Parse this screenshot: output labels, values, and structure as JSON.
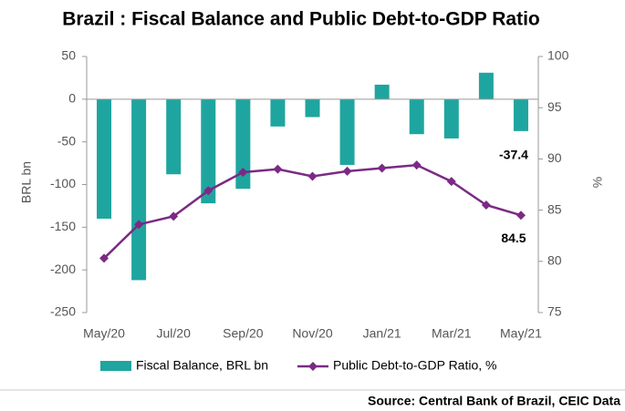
{
  "chart_data": {
    "type": "bar-line",
    "title": "Brazil : Fiscal Balance and Public Debt-to-GDP Ratio",
    "source": "Source: Central Bank of Brazil, CEIC Data",
    "y_label": "BRL bn",
    "y2_label": "%",
    "categories": [
      "May/20",
      null,
      "Jul/20",
      null,
      "Sep/20",
      null,
      "Nov/20",
      null,
      "Jan/21",
      null,
      "Mar/21",
      null,
      "May/21"
    ],
    "series": [
      {
        "name": "Fiscal Balance, BRL bn",
        "type": "bar",
        "color": "#1fa59f",
        "values": [
          -140,
          -212,
          -88,
          -122,
          -105,
          -32,
          -21,
          -77,
          17,
          -41,
          -46,
          31,
          -37.4
        ]
      },
      {
        "name": "Public Debt-to-GDP Ratio, %",
        "type": "line",
        "axis": "y2",
        "color": "#7b2a84",
        "values": [
          80.3,
          83.6,
          84.4,
          86.9,
          88.7,
          89.0,
          88.3,
          88.8,
          89.1,
          89.4,
          87.8,
          85.5,
          84.5
        ]
      }
    ],
    "ylim": [
      -250,
      50
    ],
    "yticks": [
      -250,
      -200,
      -150,
      -100,
      -50,
      0,
      50
    ],
    "y2lim": [
      75,
      100
    ],
    "y2ticks": [
      75,
      80,
      85,
      90,
      95,
      100
    ]
  }
}
